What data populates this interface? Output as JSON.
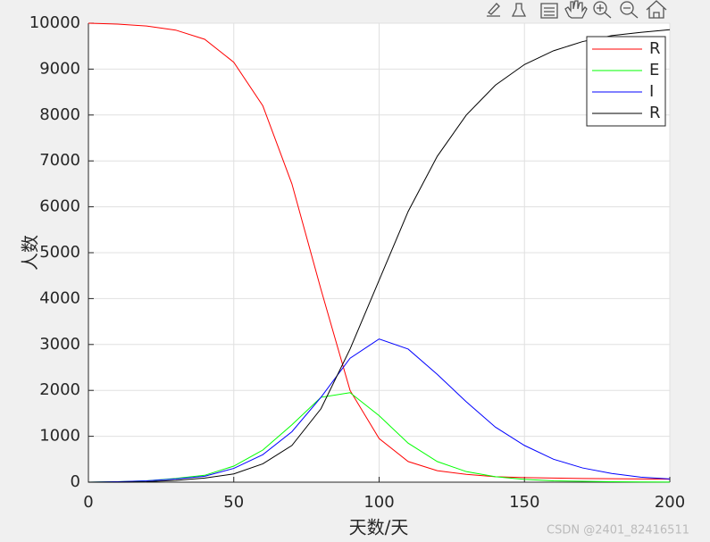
{
  "chart_data": {
    "type": "line",
    "xlabel": "天数/天",
    "ylabel": "人数",
    "x": [
      0,
      10,
      20,
      30,
      40,
      50,
      60,
      70,
      80,
      90,
      100,
      110,
      120,
      130,
      140,
      150,
      160,
      170,
      180,
      190,
      200
    ],
    "series": [
      {
        "name": "R",
        "color": "#ff0000",
        "values": [
          10000,
          9980,
          9940,
          9850,
          9650,
          9150,
          8200,
          6500,
          4200,
          2000,
          950,
          450,
          250,
          170,
          120,
          100,
          90,
          80,
          75,
          70,
          65
        ]
      },
      {
        "name": "E",
        "color": "#00ff00",
        "values": [
          0,
          10,
          30,
          80,
          150,
          350,
          700,
          1250,
          1850,
          1950,
          1450,
          850,
          450,
          230,
          120,
          60,
          30,
          20,
          10,
          5,
          3
        ]
      },
      {
        "name": "I",
        "color": "#0000ff",
        "values": [
          0,
          10,
          30,
          70,
          130,
          300,
          600,
          1100,
          1850,
          2700,
          3120,
          2900,
          2350,
          1750,
          1200,
          800,
          500,
          310,
          190,
          110,
          70
        ]
      },
      {
        "name": "R",
        "color": "#000000",
        "values": [
          0,
          0,
          10,
          40,
          90,
          180,
          400,
          800,
          1600,
          2900,
          4400,
          5900,
          7100,
          8000,
          8650,
          9100,
          9400,
          9600,
          9730,
          9800,
          9860
        ]
      }
    ],
    "xlim": [
      0,
      200
    ],
    "xticks": [
      0,
      50,
      100,
      150,
      200
    ],
    "ylim": [
      0,
      10000
    ],
    "yticks": [
      0,
      1000,
      2000,
      3000,
      4000,
      5000,
      6000,
      7000,
      8000,
      9000,
      10000
    ],
    "grid": true,
    "legend_loc": "northeast"
  },
  "watermark": "CSDN @2401_82416511"
}
